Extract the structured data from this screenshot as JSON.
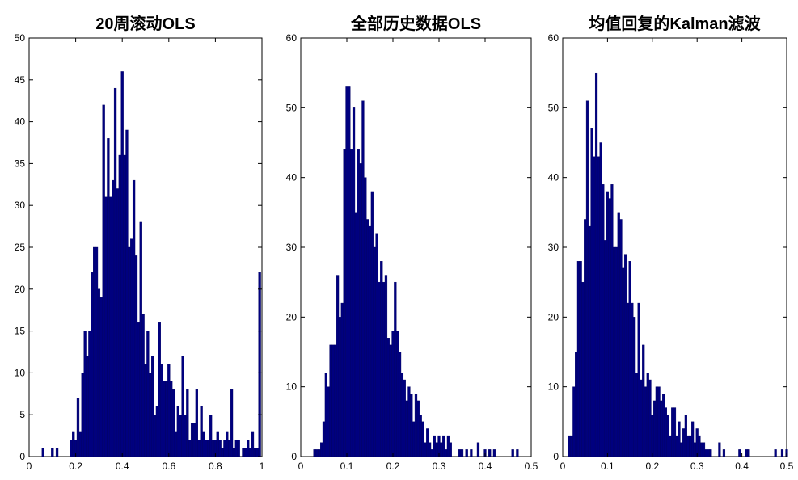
{
  "chart_data": [
    {
      "type": "bar",
      "title": "20周滚动OLS",
      "xlim": [
        0,
        1
      ],
      "ylim": [
        0,
        50
      ],
      "xticks": [
        "0",
        "0.2",
        "0.4",
        "0.6",
        "0.8",
        "1"
      ],
      "yticks": [
        "0",
        "5",
        "10",
        "15",
        "20",
        "25",
        "30",
        "35",
        "40",
        "45",
        "50"
      ],
      "bar_width": 0.01,
      "bar_color": "#00007f",
      "x": [
        0.06,
        0.1,
        0.12,
        0.18,
        0.19,
        0.2,
        0.21,
        0.22,
        0.23,
        0.24,
        0.25,
        0.26,
        0.27,
        0.28,
        0.29,
        0.3,
        0.31,
        0.32,
        0.33,
        0.34,
        0.35,
        0.36,
        0.37,
        0.38,
        0.39,
        0.4,
        0.41,
        0.42,
        0.43,
        0.44,
        0.45,
        0.46,
        0.47,
        0.48,
        0.49,
        0.5,
        0.51,
        0.52,
        0.53,
        0.54,
        0.55,
        0.56,
        0.57,
        0.58,
        0.59,
        0.6,
        0.61,
        0.62,
        0.63,
        0.64,
        0.65,
        0.66,
        0.67,
        0.68,
        0.69,
        0.7,
        0.71,
        0.72,
        0.73,
        0.74,
        0.75,
        0.76,
        0.77,
        0.78,
        0.79,
        0.8,
        0.81,
        0.82,
        0.83,
        0.84,
        0.85,
        0.86,
        0.87,
        0.88,
        0.89,
        0.9,
        0.92,
        0.93,
        0.94,
        0.95,
        0.96,
        0.97,
        0.98,
        0.99
      ],
      "values": [
        1,
        1,
        1,
        2,
        3,
        2,
        7,
        3,
        10,
        15,
        12,
        15,
        22,
        25,
        25,
        20,
        19,
        42,
        31,
        38,
        31,
        33,
        44,
        32,
        36,
        46,
        36,
        39,
        25,
        26,
        33,
        24,
        16,
        28,
        17,
        11,
        15,
        10,
        12,
        5,
        6,
        16,
        11,
        9,
        9,
        11,
        9,
        8,
        3,
        6,
        5,
        12,
        5,
        8,
        2,
        4,
        4,
        8,
        2,
        6,
        3,
        2,
        2,
        5,
        2,
        2,
        3,
        2,
        1,
        2,
        3,
        2,
        8,
        1,
        2,
        2,
        1,
        1,
        2,
        1,
        3,
        1,
        1,
        22
      ]
    },
    {
      "type": "bar",
      "title": "全部历史数据OLS",
      "xlim": [
        0,
        0.5
      ],
      "ylim": [
        0,
        60
      ],
      "xticks": [
        "0",
        "0.1",
        "0.2",
        "0.3",
        "0.4",
        "0.5"
      ],
      "yticks": [
        "0",
        "10",
        "20",
        "30",
        "40",
        "50",
        "60"
      ],
      "bar_width": 0.005,
      "bar_color": "#00007f",
      "x": [
        0.03,
        0.035,
        0.04,
        0.045,
        0.05,
        0.055,
        0.06,
        0.065,
        0.07,
        0.075,
        0.08,
        0.085,
        0.09,
        0.095,
        0.1,
        0.105,
        0.11,
        0.115,
        0.12,
        0.125,
        0.13,
        0.135,
        0.14,
        0.145,
        0.15,
        0.155,
        0.16,
        0.165,
        0.17,
        0.175,
        0.18,
        0.185,
        0.19,
        0.195,
        0.2,
        0.205,
        0.21,
        0.215,
        0.22,
        0.225,
        0.23,
        0.235,
        0.24,
        0.245,
        0.25,
        0.255,
        0.26,
        0.265,
        0.27,
        0.275,
        0.28,
        0.285,
        0.29,
        0.295,
        0.3,
        0.305,
        0.31,
        0.315,
        0.32,
        0.325,
        0.345,
        0.35,
        0.36,
        0.37,
        0.385,
        0.4,
        0.41,
        0.42,
        0.46,
        0.47
      ],
      "values": [
        1,
        1,
        1,
        2,
        5,
        12,
        10,
        16,
        16,
        16,
        26,
        20,
        22,
        44,
        53,
        53,
        44,
        50,
        35,
        44,
        42,
        51,
        40,
        34,
        33,
        38,
        30,
        32,
        25,
        28,
        25,
        26,
        17,
        16,
        18,
        25,
        18,
        15,
        12,
        11,
        8,
        10,
        9,
        5,
        9,
        8,
        6,
        5,
        2,
        4,
        2,
        1,
        3,
        2,
        3,
        2,
        3,
        1,
        3,
        2,
        1,
        1,
        1,
        1,
        2,
        1,
        1,
        1,
        1,
        1
      ]
    },
    {
      "type": "bar",
      "title": "均值回复的Kalman滤波",
      "xlim": [
        0,
        0.5
      ],
      "ylim": [
        0,
        60
      ],
      "xticks": [
        "0",
        "0.1",
        "0.2",
        "0.3",
        "0.4",
        "0.5"
      ],
      "yticks": [
        "0",
        "10",
        "20",
        "30",
        "40",
        "50",
        "60"
      ],
      "bar_width": 0.005,
      "bar_color": "#00007f",
      "x": [
        0.015,
        0.02,
        0.025,
        0.03,
        0.035,
        0.04,
        0.045,
        0.05,
        0.055,
        0.06,
        0.065,
        0.07,
        0.075,
        0.08,
        0.085,
        0.09,
        0.095,
        0.1,
        0.105,
        0.11,
        0.115,
        0.12,
        0.125,
        0.13,
        0.135,
        0.14,
        0.145,
        0.15,
        0.155,
        0.16,
        0.165,
        0.17,
        0.175,
        0.18,
        0.185,
        0.19,
        0.195,
        0.2,
        0.205,
        0.21,
        0.215,
        0.22,
        0.225,
        0.23,
        0.235,
        0.24,
        0.245,
        0.25,
        0.255,
        0.26,
        0.265,
        0.27,
        0.275,
        0.28,
        0.285,
        0.29,
        0.295,
        0.3,
        0.305,
        0.31,
        0.315,
        0.32,
        0.325,
        0.33,
        0.35,
        0.36,
        0.395,
        0.41,
        0.415,
        0.475,
        0.49,
        0.5
      ],
      "values": [
        3,
        3,
        10,
        15,
        28,
        28,
        25,
        34,
        51,
        33,
        47,
        43,
        55,
        43,
        45,
        39,
        31,
        38,
        37,
        39,
        30,
        30,
        35,
        34,
        27,
        29,
        22,
        28,
        22,
        20,
        12,
        22,
        11,
        16,
        10,
        12,
        11,
        6,
        8,
        10,
        10,
        8,
        9,
        7,
        6,
        3,
        7,
        7,
        3,
        5,
        2,
        4,
        6,
        3,
        3,
        5,
        2,
        4,
        3,
        2,
        2,
        1,
        1,
        1,
        2,
        1,
        1,
        1,
        1,
        1,
        1,
        1
      ]
    }
  ]
}
